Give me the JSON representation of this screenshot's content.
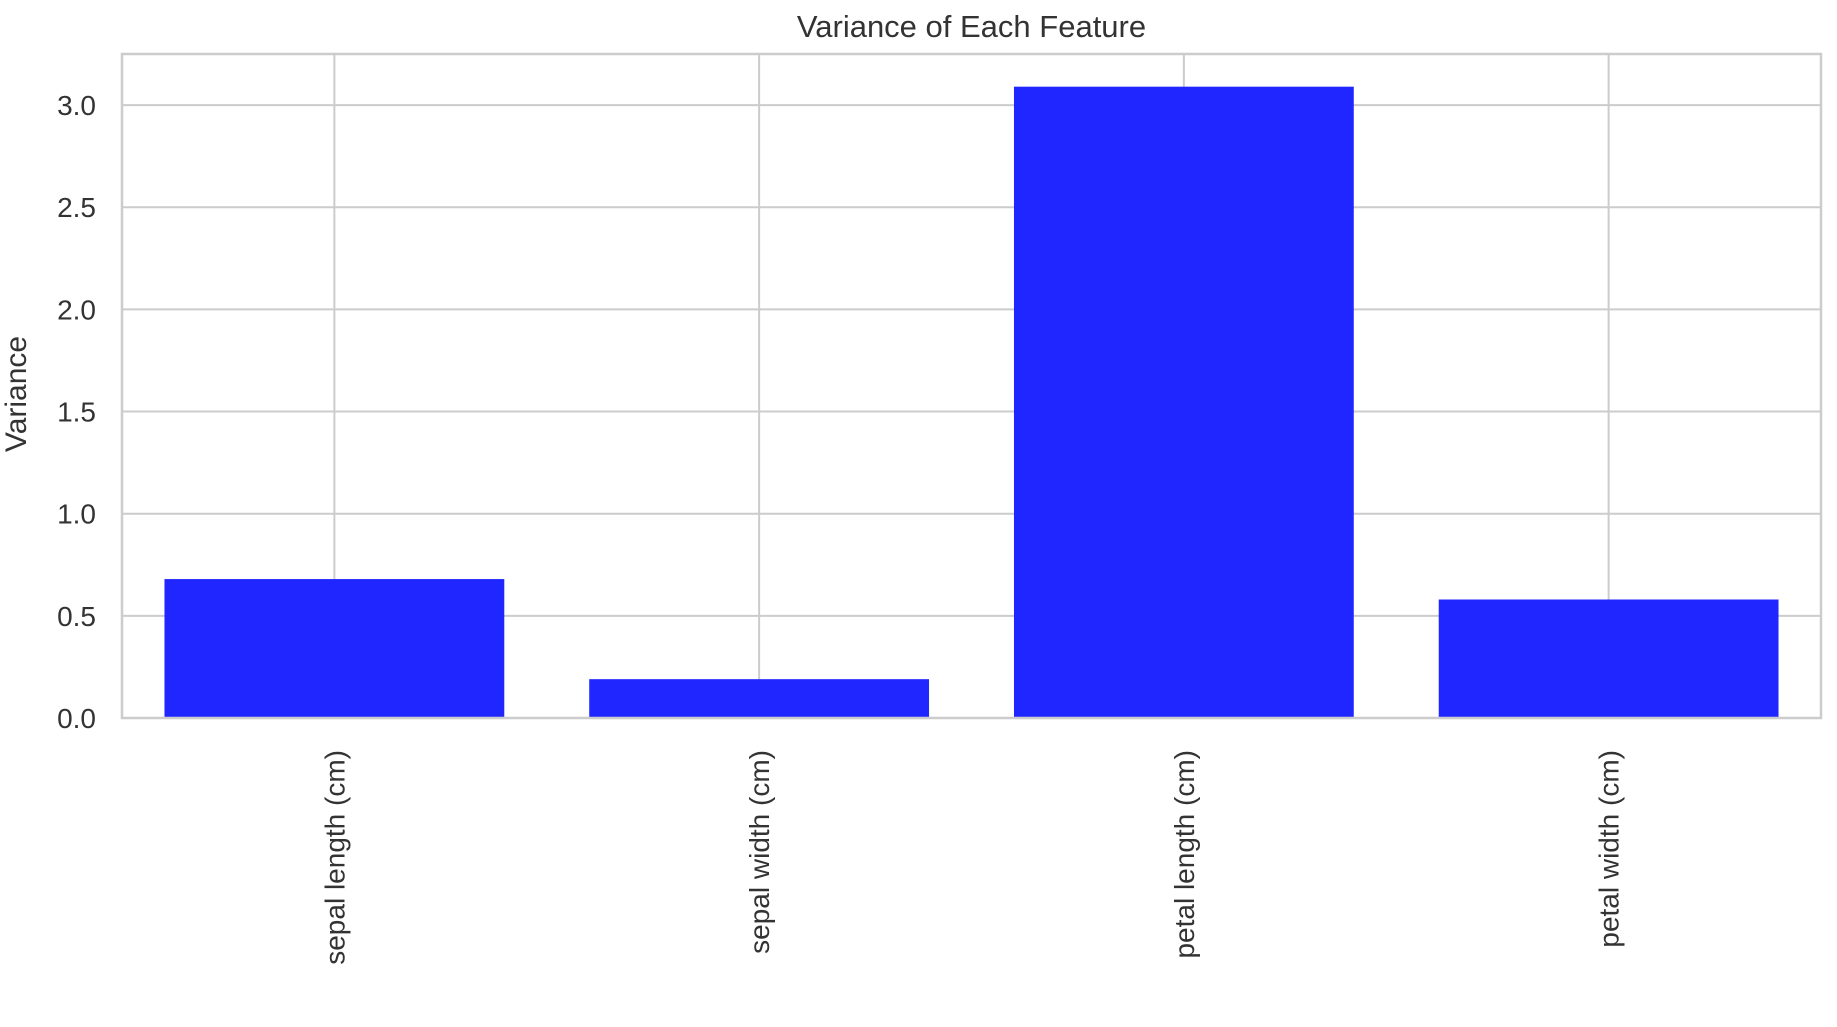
{
  "chart_data": {
    "type": "bar",
    "title": "Variance of Each Feature",
    "xlabel": "",
    "ylabel": "Variance",
    "categories": [
      "sepal length (cm)",
      "sepal width (cm)",
      "petal length (cm)",
      "petal width (cm)"
    ],
    "values": [
      0.68,
      0.19,
      3.09,
      0.58
    ],
    "ylim": [
      0,
      3.25
    ],
    "yticks": [
      {
        "value": 0.0,
        "label": "0.0"
      },
      {
        "value": 0.5,
        "label": "0.5"
      },
      {
        "value": 1.0,
        "label": "1.0"
      },
      {
        "value": 1.5,
        "label": "1.5"
      },
      {
        "value": 2.0,
        "label": "2.0"
      },
      {
        "value": 2.5,
        "label": "2.5"
      },
      {
        "value": 3.0,
        "label": "3.0"
      }
    ],
    "bar_color": "#1f26ff",
    "grid": true,
    "tick_label_rotation": "vertical"
  }
}
